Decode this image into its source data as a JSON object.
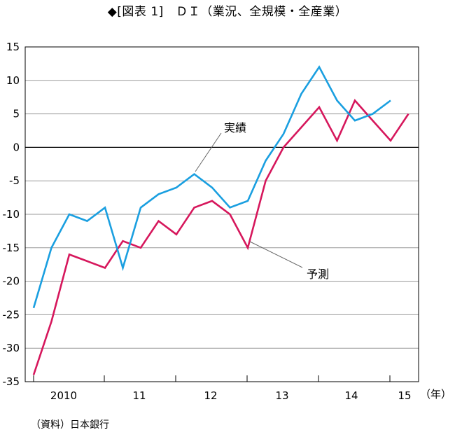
{
  "chart_data": {
    "type": "line",
    "title": "◆[図表 1]　ＤＩ（業況、全規模・全産業）",
    "x_unit_label": "（年）",
    "x_tick_labels": [
      "2010",
      "11",
      "12",
      "13",
      "14",
      "15"
    ],
    "ylim": [
      -35,
      15
    ],
    "yticks": [
      15,
      10,
      5,
      0,
      -5,
      -10,
      -15,
      -20,
      -25,
      -30,
      -35
    ],
    "grid": true,
    "series": [
      {
        "name": "実績",
        "color": "#1a9fe0",
        "values": [
          -24,
          -15,
          -10,
          -11,
          -9,
          -18,
          -9,
          -7,
          -6,
          -4,
          -6,
          -9,
          -8,
          -2,
          2,
          8,
          12,
          7,
          4,
          5,
          7
        ]
      },
      {
        "name": "予測",
        "color": "#d6175c",
        "values": [
          -34,
          -26,
          -16,
          -17,
          -18,
          -14,
          -15,
          -11,
          -13,
          -9,
          -8,
          -10,
          -15,
          -5,
          0,
          3,
          6,
          1,
          7,
          4,
          1,
          5
        ]
      }
    ],
    "annotations": [
      "実績",
      "予測"
    ]
  },
  "source_note": "（資料）日本銀行"
}
